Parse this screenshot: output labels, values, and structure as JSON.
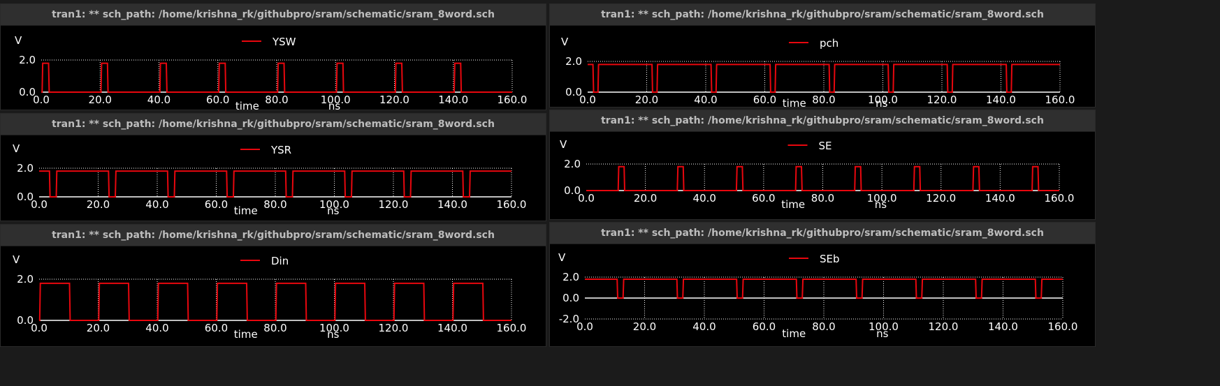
{
  "window_title": "tran1: ** sch_path: /home/krishna_rk/githubpro/sram/schematic/sram_8word.sch",
  "plots": [
    {
      "id": "ysw",
      "title": "tran1: ** sch_path: /home/krishna_rk/githubpro/sram/schematic/sram_8word.sch"
    },
    {
      "id": "pch",
      "title": "tran1: ** sch_path: /home/krishna_rk/githubpro/sram/schematic/sram_8word.sch"
    },
    {
      "id": "ysr",
      "title": "tran1: ** sch_path: /home/krishna_rk/githubpro/sram/schematic/sram_8word.sch"
    },
    {
      "id": "se",
      "title": "tran1: ** sch_path: /home/krishna_rk/githubpro/sram/schematic/sram_8word.sch"
    },
    {
      "id": "din",
      "title": "tran1: ** sch_path: /home/krishna_rk/githubpro/sram/schematic/sram_8word.sch"
    },
    {
      "id": "seb",
      "title": "tran1: ** sch_path: /home/krishna_rk/githubpro/sram/schematic/sram_8word.sch"
    }
  ],
  "colors": {
    "trace": "#e8070e",
    "axis": "#ffffff",
    "grid": "#ffffff",
    "text": "#ffffff",
    "background": "#000000",
    "titlebar": "#2f2f2f"
  },
  "chart_data": [
    {
      "id": "ysw",
      "type": "line",
      "title": "",
      "xlabel": "time",
      "xunit": "ns",
      "ylabel": "V",
      "xlim": [
        0,
        160
      ],
      "ylim": [
        0,
        2
      ],
      "grid": true,
      "legend_position": "top-center",
      "x_ticks": [
        "0.0",
        "20.0",
        "40.0",
        "60.0",
        "80.0",
        "100.0",
        "120.0",
        "140.0",
        "160.0"
      ],
      "y_ticks": [
        "0.0",
        "2.0"
      ],
      "series": [
        {
          "name": "YSW",
          "x": [
            0,
            0.3,
            0.5,
            2.5,
            2.7,
            20,
            20.3,
            20.5,
            22.5,
            22.7,
            40,
            40.3,
            40.5,
            42.5,
            42.7,
            60,
            60.3,
            60.5,
            62.5,
            62.7,
            80,
            80.3,
            80.5,
            82.5,
            82.7,
            100,
            100.3,
            100.5,
            102.5,
            102.7,
            120,
            120.3,
            120.5,
            122.5,
            122.7,
            140,
            140.3,
            140.5,
            142.5,
            142.7,
            160
          ],
          "y": [
            0,
            0,
            1.8,
            1.8,
            0,
            0,
            0,
            1.8,
            1.8,
            0,
            0,
            0,
            1.8,
            1.8,
            0,
            0,
            0,
            1.8,
            1.8,
            0,
            0,
            0,
            1.8,
            1.8,
            0,
            0,
            0,
            1.8,
            1.8,
            0,
            0,
            0,
            1.8,
            1.8,
            0,
            0,
            0,
            1.8,
            1.8,
            0,
            0
          ]
        }
      ]
    },
    {
      "id": "pch",
      "type": "line",
      "title": "",
      "xlabel": "time",
      "xunit": "ns",
      "ylabel": "V",
      "xlim": [
        0,
        160
      ],
      "ylim": [
        0,
        2
      ],
      "grid": true,
      "legend_position": "top-center",
      "x_ticks": [
        "0.0",
        "20.0",
        "40.0",
        "60.0",
        "80.0",
        "100.0",
        "120.0",
        "140.0",
        "160.0"
      ],
      "y_ticks": [
        "0.0",
        "2.0"
      ],
      "series": [
        {
          "name": "pch",
          "x": [
            0,
            1.8,
            2,
            3.5,
            3.7,
            21.8,
            22,
            23.5,
            23.7,
            41.8,
            42,
            43.5,
            43.7,
            61.8,
            62,
            63.5,
            63.7,
            81.8,
            82,
            83.5,
            83.7,
            101.8,
            102,
            103.5,
            103.7,
            121.8,
            122,
            123.5,
            123.7,
            141.8,
            142,
            143.5,
            143.7,
            160
          ],
          "y": [
            1.8,
            1.8,
            0,
            0,
            1.8,
            1.8,
            0,
            0,
            1.8,
            1.8,
            0,
            0,
            1.8,
            1.8,
            0,
            0,
            1.8,
            1.8,
            0,
            0,
            1.8,
            1.8,
            0,
            0,
            1.8,
            1.8,
            0,
            0,
            1.8,
            1.8,
            0,
            0,
            1.8,
            1.8
          ]
        }
      ]
    },
    {
      "id": "ysr",
      "type": "line",
      "title": "",
      "xlabel": "time",
      "xunit": "ns",
      "ylabel": "V",
      "xlim": [
        0,
        160
      ],
      "ylim": [
        0,
        2
      ],
      "grid": true,
      "legend_position": "top-center",
      "x_ticks": [
        "0.0",
        "20.0",
        "40.0",
        "60.0",
        "80.0",
        "100.0",
        "120.0",
        "140.0",
        "160.0"
      ],
      "y_ticks": [
        "0.0",
        "2.0"
      ],
      "series": [
        {
          "name": "YSR",
          "x": [
            0,
            3.5,
            3.7,
            5.8,
            6,
            23.5,
            23.7,
            25.8,
            26,
            43.5,
            43.7,
            45.8,
            46,
            63.5,
            63.7,
            65.8,
            66,
            83.5,
            83.7,
            85.8,
            86,
            103.5,
            103.7,
            105.8,
            106,
            123.5,
            123.7,
            125.8,
            126,
            143.5,
            143.7,
            145.8,
            146,
            160
          ],
          "y": [
            1.8,
            1.8,
            0,
            0,
            1.8,
            1.8,
            0,
            0,
            1.8,
            1.8,
            0,
            0,
            1.8,
            1.8,
            0,
            0,
            1.8,
            1.8,
            0,
            0,
            1.8,
            1.8,
            0,
            0,
            1.8,
            1.8,
            0,
            0,
            1.8,
            1.8,
            0,
            0,
            1.8,
            1.8
          ]
        }
      ]
    },
    {
      "id": "se",
      "type": "line",
      "title": "",
      "xlabel": "time",
      "xunit": "ns",
      "ylabel": "V",
      "xlim": [
        0,
        160
      ],
      "ylim": [
        0,
        2
      ],
      "grid": true,
      "legend_position": "top-center",
      "x_ticks": [
        "0.0",
        "20.0",
        "40.0",
        "60.0",
        "80.0",
        "100.0",
        "120.0",
        "140.0",
        "160.0"
      ],
      "y_ticks": [
        "0.0",
        "2.0"
      ],
      "series": [
        {
          "name": "SE",
          "x": [
            0,
            10.8,
            11,
            12.8,
            13,
            30.8,
            31,
            32.8,
            33,
            50.8,
            51,
            52.8,
            53,
            70.8,
            71,
            72.8,
            73,
            90.8,
            91,
            92.8,
            93,
            110.8,
            111,
            112.8,
            113,
            130.8,
            131,
            132.8,
            133,
            150.8,
            151,
            152.8,
            153,
            160
          ],
          "y": [
            0,
            0,
            1.8,
            1.8,
            0,
            0,
            1.8,
            1.8,
            0,
            0,
            1.8,
            1.8,
            0,
            0,
            1.8,
            1.8,
            0,
            0,
            1.8,
            1.8,
            0,
            0,
            1.8,
            1.8,
            0,
            0,
            1.8,
            1.8,
            0,
            0,
            1.8,
            1.8,
            0,
            0
          ]
        }
      ]
    },
    {
      "id": "din",
      "type": "line",
      "title": "",
      "xlabel": "time",
      "xunit": "ns",
      "ylabel": "V",
      "xlim": [
        0,
        160
      ],
      "ylim": [
        0,
        2
      ],
      "grid": true,
      "legend_position": "top-center",
      "x_ticks": [
        "0.0",
        "20.0",
        "40.0",
        "60.0",
        "80.0",
        "100.0",
        "120.0",
        "140.0",
        "160.0"
      ],
      "y_ticks": [
        "0.0",
        "2.0"
      ],
      "series": [
        {
          "name": "Din",
          "x": [
            0,
            0.2,
            0.4,
            10.3,
            10.5,
            20.2,
            20.4,
            30.3,
            30.5,
            40.2,
            40.4,
            50.3,
            50.5,
            60.2,
            60.4,
            70.3,
            70.5,
            80.2,
            80.4,
            90.3,
            90.5,
            100.2,
            100.4,
            110.3,
            110.5,
            120.2,
            120.4,
            130.3,
            130.5,
            140.2,
            140.4,
            150.3,
            150.5,
            160
          ],
          "y": [
            0,
            0,
            1.8,
            1.8,
            0,
            0,
            1.8,
            1.8,
            0,
            0,
            1.8,
            1.8,
            0,
            0,
            1.8,
            1.8,
            0,
            0,
            1.8,
            1.8,
            0,
            0,
            1.8,
            1.8,
            0,
            0,
            1.8,
            1.8,
            0,
            0,
            1.8,
            1.8,
            0,
            0
          ]
        }
      ]
    },
    {
      "id": "seb",
      "type": "line",
      "title": "",
      "xlabel": "time",
      "xunit": "ns",
      "ylabel": "V",
      "xlim": [
        0,
        160
      ],
      "ylim": [
        -2,
        2
      ],
      "grid": true,
      "legend_position": "top-center",
      "x_ticks": [
        "0.0",
        "20.0",
        "40.0",
        "60.0",
        "80.0",
        "100.0",
        "120.0",
        "140.0",
        "160.0"
      ],
      "y_ticks": [
        "-2.0",
        "0.0",
        "2.0"
      ],
      "series": [
        {
          "name": "SEb",
          "x": [
            0,
            10.8,
            11,
            12.8,
            13,
            30.8,
            31,
            32.8,
            33,
            50.8,
            51,
            52.8,
            53,
            70.8,
            71,
            72.8,
            73,
            90.8,
            91,
            92.8,
            93,
            110.8,
            111,
            112.8,
            113,
            130.8,
            131,
            132.8,
            133,
            150.8,
            151,
            152.8,
            153,
            160
          ],
          "y": [
            1.8,
            1.8,
            0,
            0,
            1.8,
            1.8,
            0,
            0,
            1.8,
            1.8,
            0,
            0,
            1.8,
            1.8,
            0,
            0,
            1.8,
            1.8,
            0,
            0,
            1.8,
            1.8,
            0,
            0,
            1.8,
            1.8,
            0,
            0,
            1.8,
            1.8,
            0,
            0,
            1.8,
            1.8
          ]
        }
      ]
    }
  ]
}
